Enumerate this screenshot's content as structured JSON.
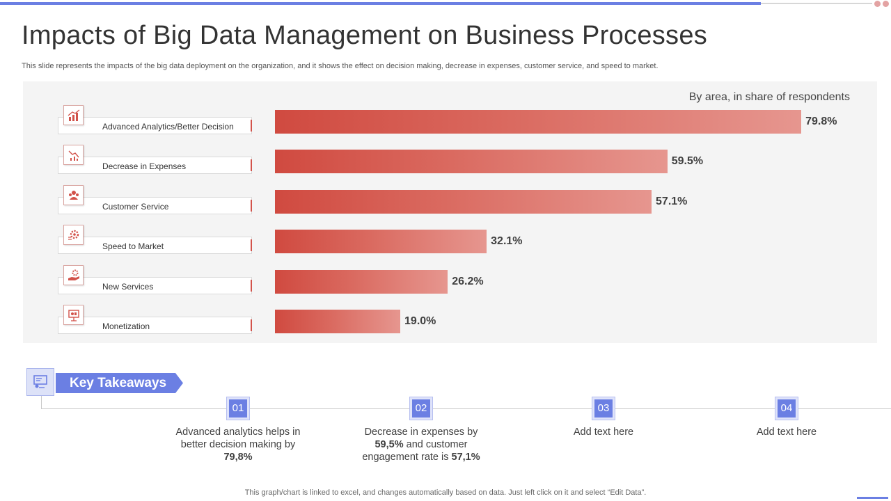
{
  "title": "Impacts of Big Data Management on Business Processes",
  "subtitle": "This slide represents the impacts of the big data deployment on the organization, and it shows the effect on decision making, decrease in expenses, customer service, and speed to market.",
  "colors": {
    "accent": "#6b7fe3",
    "bar": "#d04a40",
    "bar_light": "#e6968f"
  },
  "chart_data": {
    "type": "bar",
    "orientation": "horizontal",
    "note": "By area, in share of respondents",
    "categories": [
      "Advanced Analytics/Better Decision",
      "Decrease in Expenses",
      "Customer Service",
      "Speed to Market",
      "New Services",
      "Monetization"
    ],
    "values": [
      79.8,
      59.5,
      57.1,
      32.1,
      26.2,
      19.0
    ],
    "value_labels": [
      "79.8%",
      "59.5%",
      "57.1%",
      "32.1%",
      "26.2%",
      "19.0%"
    ],
    "icons": [
      "bar-chart-icon",
      "declining-chart-icon",
      "team-icon",
      "gear-speed-icon",
      "hand-gear-icon",
      "presentation-icon"
    ],
    "xlim": [
      0,
      100
    ],
    "grid": false
  },
  "takeaways": {
    "heading": "Key Takeaways",
    "icon": "presentation-board-icon",
    "items": [
      {
        "num": "01",
        "parts": [
          [
            "Advanced analytics helps in better decision making by ",
            false
          ],
          [
            "79,8%",
            true
          ]
        ]
      },
      {
        "num": "02",
        "parts": [
          [
            "Decrease in expenses by ",
            false
          ],
          [
            "59,5%",
            true
          ],
          [
            " and customer engagement rate is ",
            false
          ],
          [
            "57,1%",
            true
          ]
        ]
      },
      {
        "num": "03",
        "parts": [
          [
            "Add text here",
            false
          ]
        ]
      },
      {
        "num": "04",
        "parts": [
          [
            "Add text here",
            false
          ]
        ]
      }
    ]
  },
  "footer": "This graph/chart is linked to excel, and changes automatically based on data. Just left click on it and select “Edit Data”."
}
